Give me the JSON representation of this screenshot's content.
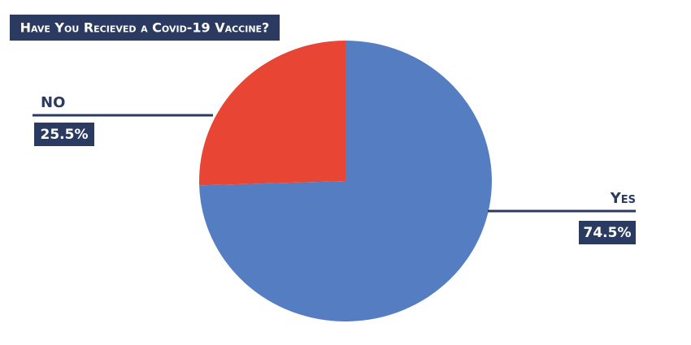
{
  "chart_data": {
    "type": "pie",
    "title": "Have You Recieved a Covid-19 Vaccine?",
    "categories": [
      "Yes",
      "NO"
    ],
    "values": [
      74.5,
      25.5
    ],
    "value_labels": [
      "74.5%",
      "25.5%"
    ],
    "colors": [
      "#557ec2",
      "#e84535"
    ]
  }
}
